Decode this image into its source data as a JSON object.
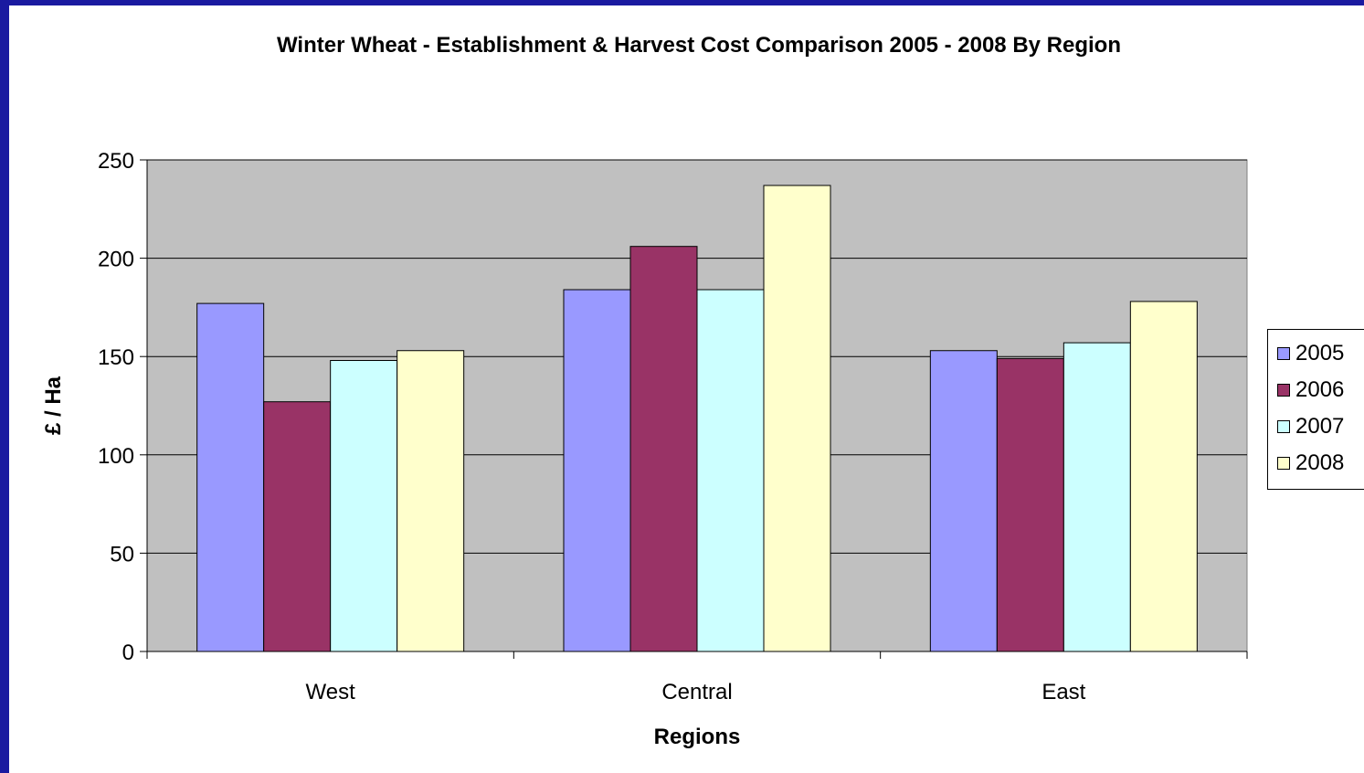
{
  "chart_data": {
    "type": "bar",
    "title": "Winter Wheat - Establishment & Harvest Cost Comparison 2005 - 2008 By Region",
    "xlabel": "Regions",
    "ylabel": "£ / Ha",
    "categories": [
      "West",
      "Central",
      "East"
    ],
    "ylim": [
      0,
      250
    ],
    "yticks": [
      0,
      50,
      100,
      150,
      200,
      250
    ],
    "grid": true,
    "legend_position": "right",
    "plot_background": "#c0c0c0",
    "series": [
      {
        "name": "2005",
        "color": "#9999ff",
        "values": [
          177,
          184,
          153
        ]
      },
      {
        "name": "2006",
        "color": "#993366",
        "values": [
          127,
          206,
          149
        ]
      },
      {
        "name": "2007",
        "color": "#ccffff",
        "values": [
          148,
          184,
          157
        ]
      },
      {
        "name": "2008",
        "color": "#ffffcc",
        "values": [
          153,
          237,
          178
        ]
      }
    ]
  }
}
